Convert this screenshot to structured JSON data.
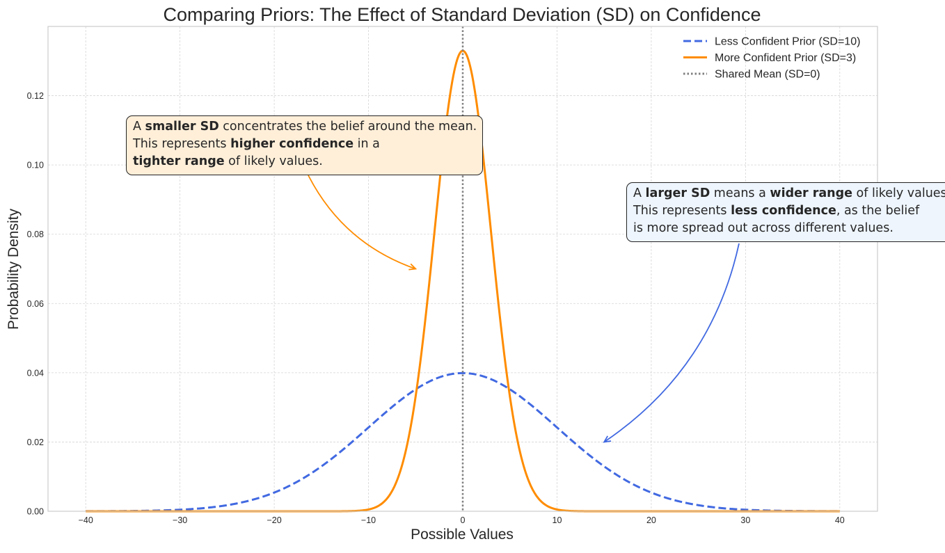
{
  "chart_data": {
    "type": "line",
    "title": "Comparing Priors: The Effect of Standard Deviation (SD) on Confidence",
    "xlabel": "Possible Values",
    "ylabel": "Probability Density",
    "xlim": [
      -44,
      44
    ],
    "ylim": [
      0,
      0.14
    ],
    "x_range": [
      -40,
      40
    ],
    "xticks": [
      -40,
      -30,
      -20,
      -10,
      0,
      10,
      20,
      30,
      40
    ],
    "xtick_labels": [
      "−40",
      "−30",
      "−20",
      "−10",
      "0",
      "10",
      "20",
      "30",
      "40"
    ],
    "yticks": [
      0,
      0.02,
      0.04,
      0.06,
      0.08,
      0.1,
      0.12
    ],
    "ytick_labels": [
      "0.00",
      "0.02",
      "0.04",
      "0.06",
      "0.08",
      "0.10",
      "0.12"
    ],
    "grid": true,
    "legend_position": "top-right",
    "series": [
      {
        "name": "Less Confident Prior (SD=10)",
        "distribution": "normal",
        "mean": 0,
        "sd": 10,
        "color": "#4169E1",
        "style": "dashed",
        "x": [
          -40,
          -35,
          -30,
          -25,
          -20,
          -15,
          -10,
          -5,
          0,
          5,
          10,
          15,
          20,
          25,
          30,
          35,
          40
        ],
        "y": [
          1.34e-05,
          8.73e-05,
          0.00044,
          0.00175,
          0.0054,
          0.01295,
          0.0242,
          0.03521,
          0.03989,
          0.03521,
          0.0242,
          0.01295,
          0.0054,
          0.00175,
          0.00044,
          8.73e-05,
          1.34e-05
        ]
      },
      {
        "name": "More Confident Prior (SD=3)",
        "distribution": "normal",
        "mean": 0,
        "sd": 3,
        "color": "#FF8C00",
        "style": "solid",
        "x": [
          -15,
          -10,
          -5,
          0,
          5,
          10,
          15
        ],
        "y": [
          5e-07,
          0.000514,
          0.03316,
          0.13298,
          0.03316,
          0.000514,
          5e-07
        ]
      },
      {
        "name": "Shared Mean (SD=0)",
        "type": "vline",
        "x": 0,
        "color": "#808080",
        "style": "dotted"
      }
    ],
    "annotations": [
      {
        "id": "narrow",
        "target": [
          -5,
          0.07
        ],
        "color": "#FF8C00",
        "background": "#FFEFD9",
        "lines": [
          [
            {
              "t": "A ",
              "b": false
            },
            {
              "t": "smaller SD",
              "b": true
            },
            {
              "t": " concentrates the belief around the mean.",
              "b": false
            }
          ],
          [
            {
              "t": "This represents ",
              "b": false
            },
            {
              "t": "higher confidence",
              "b": true
            },
            {
              "t": " in a",
              "b": false
            }
          ],
          [
            {
              "t": "tighter range",
              "b": true
            },
            {
              "t": " of likely values.",
              "b": false
            }
          ]
        ]
      },
      {
        "id": "wide",
        "target": [
          15,
          0.02
        ],
        "color": "#4169E1",
        "background": "#EEF5FD",
        "lines": [
          [
            {
              "t": "A ",
              "b": false
            },
            {
              "t": "larger SD",
              "b": true
            },
            {
              "t": " means a ",
              "b": false
            },
            {
              "t": "wider range",
              "b": true
            },
            {
              "t": " of likely values.",
              "b": false
            }
          ],
          [
            {
              "t": "This represents ",
              "b": false
            },
            {
              "t": "less confidence",
              "b": true
            },
            {
              "t": ", as the belief",
              "b": false
            }
          ],
          [
            {
              "t": "is more spread out across different values.",
              "b": false
            }
          ]
        ]
      }
    ]
  }
}
